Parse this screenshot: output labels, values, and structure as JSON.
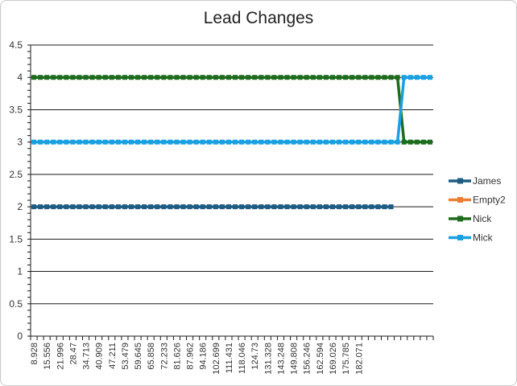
{
  "chart_data": {
    "type": "line",
    "title": "Lead Changes",
    "xlabel": "",
    "ylabel": "",
    "ylim": [
      0,
      4.5
    ],
    "yticks": [
      0,
      0.5,
      1,
      1.5,
      2,
      2.5,
      3,
      3.5,
      4,
      4.5
    ],
    "ytick_labels": [
      "0",
      "0.5",
      "1",
      "1.5",
      "2",
      "2.5",
      "3",
      "3.5",
      "4",
      "4.5"
    ],
    "x_labels": [
      "8.928",
      "15.556",
      "21.996",
      "28.47",
      "34.713",
      "40.909",
      "47.211",
      "53.479",
      "59.645",
      "65.858",
      "72.233",
      "81.626",
      "87.962",
      "94.186",
      "102.699",
      "111.431",
      "118.046",
      "124.73",
      "131.328",
      "143.248",
      "149.808",
      "156.246",
      "162.594",
      "169.026",
      "175.785",
      "182.071"
    ],
    "num_points": 62,
    "grid": true,
    "legend_position": "right",
    "series": [
      {
        "name": "James",
        "color": "#1f5c82",
        "values": [
          2,
          2,
          2,
          2,
          2,
          2,
          2,
          2,
          2,
          2,
          2,
          2,
          2,
          2,
          2,
          2,
          2,
          2,
          2,
          2,
          2,
          2,
          2,
          2,
          2,
          2,
          2,
          2,
          2,
          2,
          2,
          2,
          2,
          2,
          2,
          2,
          2,
          2,
          2,
          2,
          2,
          2,
          2,
          2,
          2,
          2,
          2,
          2,
          2,
          2,
          2,
          2,
          2,
          2,
          2,
          2,
          null,
          null,
          null,
          null,
          null,
          null
        ]
      },
      {
        "name": "Empty2",
        "color": "#ed7d31",
        "values": []
      },
      {
        "name": "Nick",
        "color": "#1e6b1e",
        "values": [
          4,
          4,
          4,
          4,
          4,
          4,
          4,
          4,
          4,
          4,
          4,
          4,
          4,
          4,
          4,
          4,
          4,
          4,
          4,
          4,
          4,
          4,
          4,
          4,
          4,
          4,
          4,
          4,
          4,
          4,
          4,
          4,
          4,
          4,
          4,
          4,
          4,
          4,
          4,
          4,
          4,
          4,
          4,
          4,
          4,
          4,
          4,
          4,
          4,
          4,
          4,
          4,
          4,
          4,
          4,
          4,
          4,
          3,
          3,
          3,
          3,
          3
        ]
      },
      {
        "name": "Mick",
        "color": "#1aa0e0",
        "values": [
          3,
          3,
          3,
          3,
          3,
          3,
          3,
          3,
          3,
          3,
          3,
          3,
          3,
          3,
          3,
          3,
          3,
          3,
          3,
          3,
          3,
          3,
          3,
          3,
          3,
          3,
          3,
          3,
          3,
          3,
          3,
          3,
          3,
          3,
          3,
          3,
          3,
          3,
          3,
          3,
          3,
          3,
          3,
          3,
          3,
          3,
          3,
          3,
          3,
          3,
          3,
          3,
          3,
          3,
          3,
          3,
          3,
          4,
          4,
          4,
          4,
          4
        ]
      }
    ]
  }
}
